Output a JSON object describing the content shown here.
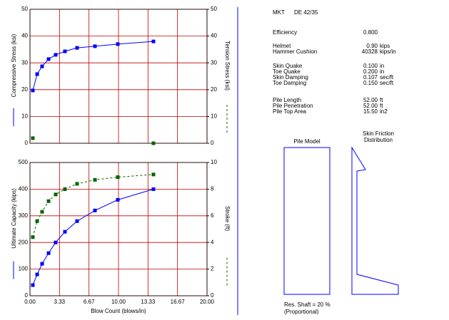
{
  "chart_data": [
    {
      "type": "line",
      "ylabel": "Compressive Stress (ksi)",
      "y2label": "Tension Stress (ksi)",
      "x": [
        0.32,
        0.81,
        1.37,
        2.1,
        2.9,
        3.95,
        5.32,
        7.34,
        9.92,
        13.95
      ],
      "xlim": [
        0,
        20
      ],
      "xticks": [
        0,
        3.333,
        6.667,
        10,
        13.333,
        16.667,
        20
      ],
      "ylim": [
        0,
        50
      ],
      "yticks": [
        0,
        10,
        20,
        30,
        40,
        50
      ],
      "y2lim": [
        0,
        50
      ],
      "y2ticks": [
        0,
        10,
        20,
        30,
        40,
        50
      ],
      "grid": true,
      "grid_color": "#c00000",
      "series": [
        {
          "color": "#0000ff",
          "line_style": "solid",
          "values": [
            19.7,
            25.8,
            28.7,
            31.4,
            33.0,
            34.3,
            35.6,
            36.2,
            37.0,
            38.0
          ]
        },
        {
          "color": "#006400",
          "line_style": "dashed",
          "axis": "y2",
          "values": [
            1.9,
            null,
            null,
            null,
            null,
            null,
            null,
            null,
            null,
            0
          ]
        }
      ]
    },
    {
      "type": "line",
      "ylabel": "Ultimate Capacity (kips)",
      "y2label": "Stroke (ft)",
      "xlabel": "Blow Count (blows/in)",
      "x": [
        0.32,
        0.81,
        1.37,
        2.1,
        2.9,
        3.95,
        5.32,
        7.34,
        9.92,
        13.95
      ],
      "xlim": [
        0,
        20
      ],
      "xticks": [
        {
          "value": 0,
          "label": "0.00"
        },
        {
          "value": 3.333,
          "label": "3.33"
        },
        {
          "value": 6.667,
          "label": "6.67"
        },
        {
          "value": 10,
          "label": "10.00"
        },
        {
          "value": 13.333,
          "label": "13.33"
        },
        {
          "value": 16.667,
          "label": "16.67"
        },
        {
          "value": 20,
          "label": "20.00"
        }
      ],
      "ylim": [
        0,
        500
      ],
      "yticks": [
        0,
        100,
        200,
        300,
        400,
        500
      ],
      "y2lim": [
        0,
        10
      ],
      "y2ticks": [
        0,
        2,
        4,
        6,
        8,
        10
      ],
      "grid": true,
      "grid_color": "#c00000",
      "series": [
        {
          "color": "#0000ff",
          "line_style": "solid",
          "values": [
            40,
            80,
            120,
            160,
            200,
            240,
            280,
            320,
            360,
            400
          ]
        },
        {
          "color": "#006400",
          "line_style": "dashed",
          "axis": "y2",
          "values": [
            4.4,
            5.6,
            6.3,
            7.1,
            7.6,
            8.0,
            8.4,
            8.7,
            8.9,
            9.1
          ]
        }
      ]
    }
  ],
  "info": {
    "hammer": "MKT",
    "model": "DE 42/35",
    "rows": [
      {
        "label": "Efficiency",
        "value": "0.800",
        "unit": null
      },
      {
        "label": "Helmet",
        "value": "0.90",
        "unit": "kips"
      },
      {
        "label": "Hammer Cushion",
        "value": "40328",
        "unit": "kips/in"
      },
      {
        "label": "Skin Quake",
        "value": "0.100",
        "unit": "in"
      },
      {
        "label": "Toe Quake",
        "value": "0.200",
        "unit": "in"
      },
      {
        "label": "Skin Damping",
        "value": "0.107",
        "unit": "sec/ft"
      },
      {
        "label": "Toe Damping",
        "value": "0.150",
        "unit": "sec/ft"
      },
      {
        "label": "Pile Length",
        "value": "52.00",
        "unit": "ft"
      },
      {
        "label": "Pile Penetration",
        "value": "52.00",
        "unit": "ft"
      },
      {
        "label": "Pile Top Area",
        "value": "15.50",
        "unit": "in2"
      }
    ]
  },
  "pile": {
    "model_title": "Pile Model",
    "friction_title": [
      "Skin Friction",
      "Distribution"
    ],
    "note": [
      "Res. Shaft = 20 %",
      "(Proportional)"
    ]
  }
}
